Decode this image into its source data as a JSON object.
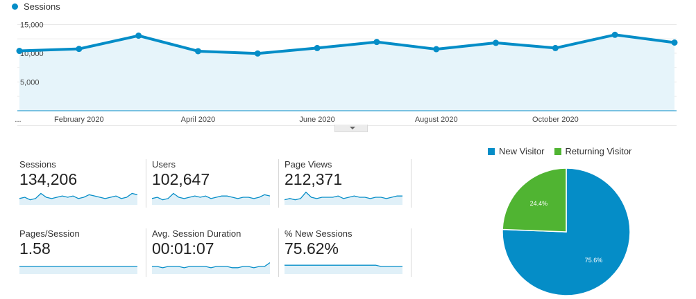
{
  "chart_data": [
    {
      "type": "area",
      "series": [
        {
          "name": "Sessions",
          "color": "#058dc7",
          "values": [
            10400,
            10750,
            13050,
            10350,
            9950,
            10900,
            11950,
            10700,
            11800,
            10900,
            13200,
            11850
          ]
        }
      ],
      "x_tick_labels": [
        "...",
        "February 2020",
        "April 2020",
        "June 2020",
        "August 2020",
        "October 2020"
      ],
      "y_tick_labels": [
        "15,000",
        "10,000",
        "5,000"
      ],
      "y_ticks": [
        15000,
        10000,
        5000
      ],
      "ylim": [
        0,
        16000
      ],
      "grid": true,
      "legend": "top-left"
    },
    {
      "type": "pie",
      "slices": [
        {
          "name": "New Visitor",
          "value": 75.6,
          "label": "75.6%",
          "color": "#058dc7"
        },
        {
          "name": "Returning Visitor",
          "value": 24.4,
          "label": "24.4%",
          "color": "#50b432"
        }
      ],
      "legend": "top"
    }
  ],
  "metrics": [
    {
      "label": "Sessions",
      "value": "134,206",
      "spark": [
        5,
        6,
        4,
        5,
        9,
        6,
        5,
        6,
        7,
        6,
        7,
        5,
        6,
        8,
        7,
        6,
        5,
        6,
        7,
        5,
        6,
        9,
        8
      ]
    },
    {
      "label": "Users",
      "value": "102,647",
      "spark": [
        5,
        6,
        4,
        5,
        9,
        6,
        5,
        6,
        7,
        6,
        7,
        5,
        6,
        7,
        7,
        6,
        5,
        6,
        6,
        5,
        6,
        8,
        7
      ]
    },
    {
      "label": "Page Views",
      "value": "212,371",
      "spark": [
        4,
        5,
        4,
        5,
        10,
        6,
        5,
        6,
        6,
        6,
        7,
        5,
        6,
        7,
        6,
        6,
        5,
        6,
        6,
        5,
        6,
        7,
        7
      ]
    },
    {
      "label": "Pages/Session",
      "value": "1.58",
      "spark": [
        6,
        6,
        6,
        6,
        6,
        6,
        6,
        6,
        6,
        6,
        6,
        6,
        6,
        6,
        6,
        6,
        6,
        6,
        6,
        6,
        6,
        6,
        6
      ]
    },
    {
      "label": "Avg. Session Duration",
      "value": "00:01:07",
      "spark": [
        6,
        6,
        5,
        6,
        6,
        6,
        5,
        6,
        6,
        6,
        6,
        5,
        6,
        6,
        6,
        5,
        5,
        6,
        6,
        5,
        6,
        6,
        9
      ]
    },
    {
      "label": "% New Sessions",
      "value": "75.62%",
      "spark": [
        7,
        7,
        7,
        7,
        7,
        7,
        7,
        7,
        7,
        7,
        7,
        7,
        7,
        7,
        7,
        7,
        7,
        7,
        6,
        6,
        6,
        6,
        6
      ]
    }
  ]
}
